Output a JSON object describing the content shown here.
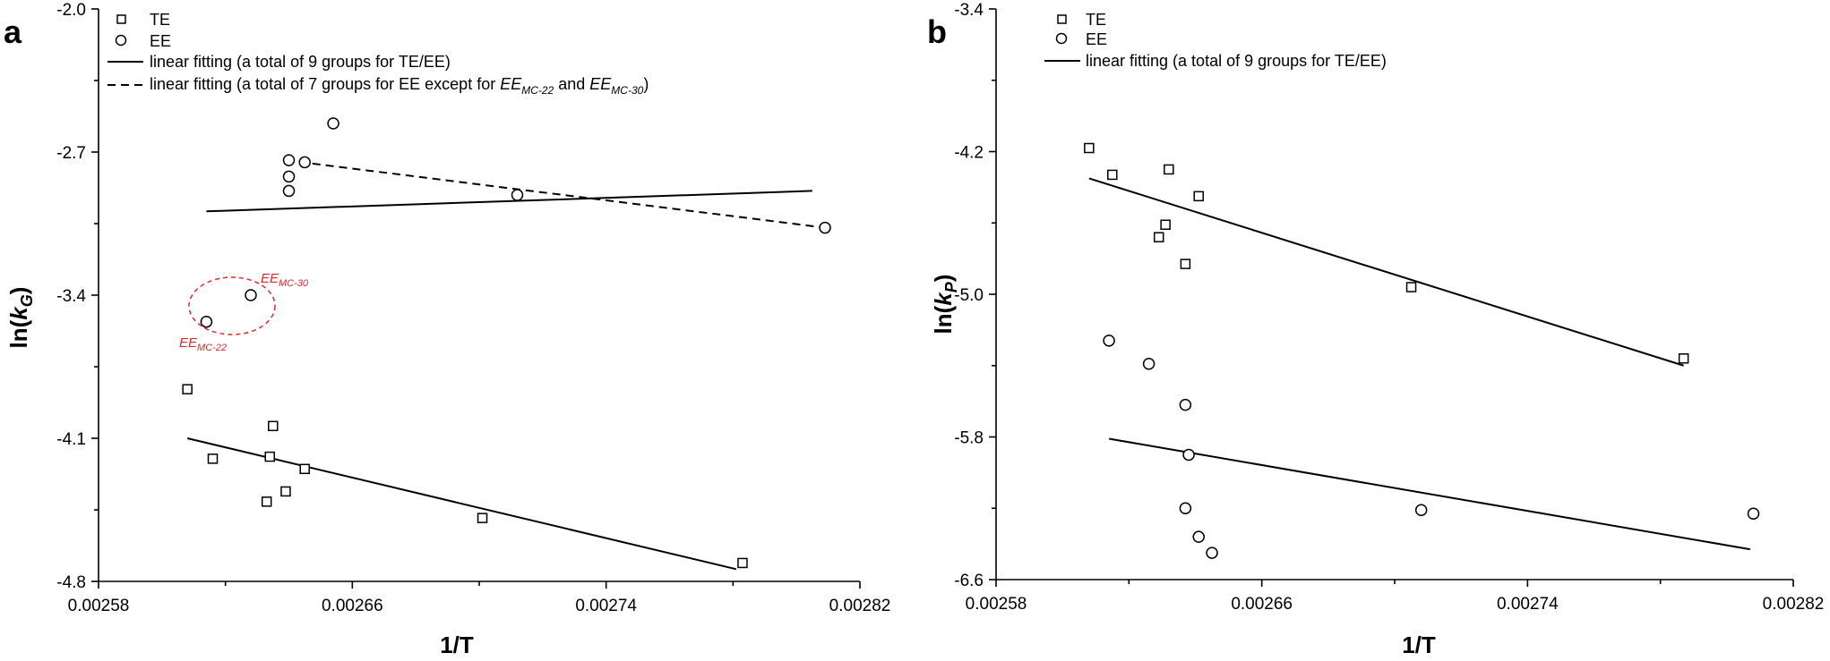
{
  "chart_data": [
    {
      "type": "scatter",
      "panel_label": "a",
      "xlabel": "1/T",
      "ylabel_main": "ln(",
      "ylabel_var": "k",
      "ylabel_sub": "G",
      "ylabel_close": ")",
      "xlim": [
        0.00258,
        0.00282
      ],
      "ylim": [
        -4.8,
        -2.0
      ],
      "x_ticks": [
        "0.00258",
        "0.00266",
        "0.00274",
        "0.00282"
      ],
      "y_ticks": [
        "-2.0",
        "-2.7",
        "-3.4",
        "-4.1",
        "-4.8"
      ],
      "x_tick_values": [
        0.00258,
        0.00266,
        0.00274,
        0.00282
      ],
      "y_tick_values": [
        -2.0,
        -2.7,
        -3.4,
        -4.1,
        -4.8
      ],
      "grid": false,
      "legend_position": "top-left",
      "series": [
        {
          "name": "TE",
          "marker": "square",
          "points": [
            [
              0.002608,
              -3.86
            ],
            [
              0.002616,
              -4.2
            ],
            [
              0.002634,
              -4.19
            ],
            [
              0.002635,
              -4.04
            ],
            [
              0.002633,
              -4.41
            ],
            [
              0.002639,
              -4.36
            ],
            [
              0.002645,
              -4.25
            ],
            [
              0.002701,
              -4.49
            ],
            [
              0.002783,
              -4.71
            ]
          ]
        },
        {
          "name": "EE",
          "marker": "circle",
          "points": [
            [
              0.00264,
              -2.74
            ],
            [
              0.002654,
              -2.56
            ],
            [
              0.00264,
              -2.82
            ],
            [
              0.00264,
              -2.89
            ],
            [
              0.002645,
              -2.75
            ],
            [
              0.002712,
              -2.91
            ],
            [
              0.002809,
              -3.07
            ],
            [
              0.002614,
              -3.53
            ],
            [
              0.002628,
              -3.4
            ]
          ]
        }
      ],
      "fits": [
        {
          "name": "linear fitting (a total of 9 groups for TE/EE)",
          "style": "solid",
          "x": [
            0.002614,
            0.002805
          ],
          "y": [
            -2.99,
            -2.89
          ]
        },
        {
          "name": "linear fitting (a total of 9 groups for TE/EE)",
          "style": "solid",
          "x": [
            0.002608,
            0.002781
          ],
          "y": [
            -4.1,
            -4.74
          ]
        },
        {
          "name": "linear fitting (a total of 7 groups for EE except for EE_MC-22 and EE_MC-30)",
          "style": "dashed",
          "x": [
            0.002639,
            0.002809
          ],
          "y": [
            -2.74,
            -3.07
          ]
        }
      ],
      "legend": [
        {
          "marker": "square",
          "label": "TE"
        },
        {
          "marker": "circle",
          "label": "EE"
        },
        {
          "marker": "solid",
          "label": "linear fitting (a total of 9 groups for TE/EE)"
        },
        {
          "marker": "dashed",
          "label_pre": "linear fitting (a total of 7 groups for EE except for ",
          "ee1": "EE",
          "ee1_sub": "MC-22",
          "mid": " and ",
          "ee2": "EE",
          "ee2_sub": "MC-30",
          "label_post": ")"
        }
      ],
      "annotations": [
        {
          "text": "EE",
          "sub": "MC-30",
          "color": "#e5262b"
        },
        {
          "text": "EE",
          "sub": "MC-22",
          "color": "#e5262b"
        }
      ]
    },
    {
      "type": "scatter",
      "panel_label": "b",
      "xlabel": "1/T",
      "ylabel_main": "ln(",
      "ylabel_var": "k",
      "ylabel_sub": "P",
      "ylabel_close": ")",
      "xlim": [
        0.00258,
        0.00282
      ],
      "ylim": [
        -6.6,
        -3.4
      ],
      "x_ticks": [
        "0.00258",
        "0.00266",
        "0.00274",
        "0.00282"
      ],
      "y_ticks": [
        "-3.4",
        "-4.2",
        "-5.0",
        "-5.8",
        "-6.6"
      ],
      "x_tick_values": [
        0.00258,
        0.00266,
        0.00274,
        0.00282
      ],
      "y_tick_values": [
        -3.4,
        -4.2,
        -5.0,
        -5.8,
        -6.6
      ],
      "grid": false,
      "legend_position": "top-left",
      "series": [
        {
          "name": "TE",
          "marker": "square",
          "points": [
            [
              0.002608,
              -4.18
            ],
            [
              0.002615,
              -4.33
            ],
            [
              0.002632,
              -4.3
            ],
            [
              0.002641,
              -4.45
            ],
            [
              0.002631,
              -4.61
            ],
            [
              0.002629,
              -4.68
            ],
            [
              0.002637,
              -4.83
            ],
            [
              0.002705,
              -4.96
            ],
            [
              0.002787,
              -5.36
            ]
          ]
        },
        {
          "name": "EE",
          "marker": "circle",
          "points": [
            [
              0.002614,
              -5.26
            ],
            [
              0.002626,
              -5.39
            ],
            [
              0.002637,
              -5.62
            ],
            [
              0.002638,
              -5.9
            ],
            [
              0.002637,
              -6.2
            ],
            [
              0.002641,
              -6.36
            ],
            [
              0.002645,
              -6.45
            ],
            [
              0.002708,
              -6.21
            ],
            [
              0.002808,
              -6.23
            ]
          ]
        }
      ],
      "fits": [
        {
          "name": "linear fitting (a total of 9 groups for TE/EE)",
          "style": "solid",
          "x": [
            0.002608,
            0.002787
          ],
          "y": [
            -4.35,
            -5.4
          ]
        },
        {
          "name": "linear fitting (a total of 9 groups for TE/EE)",
          "style": "solid",
          "x": [
            0.002614,
            0.002807
          ],
          "y": [
            -5.81,
            -6.43
          ]
        }
      ],
      "legend": [
        {
          "marker": "square",
          "label": "TE"
        },
        {
          "marker": "circle",
          "label": "EE"
        },
        {
          "marker": "solid",
          "label": "linear fitting (a total of 9 groups for TE/EE)"
        }
      ],
      "annotations": []
    }
  ]
}
